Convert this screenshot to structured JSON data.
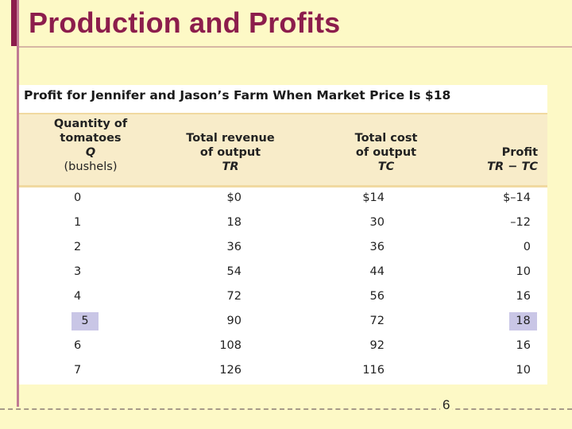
{
  "slide": {
    "title": "Production and Profits",
    "page_number": "6"
  },
  "table": {
    "caption": "Profit for Jennifer and Jason’s Farm When Market Price Is $18",
    "headers": {
      "q": {
        "line1": "Quantity of",
        "line2": "tomatoes",
        "symbol": "Q",
        "unit": "(bushels)"
      },
      "tr": {
        "line1": "Total revenue",
        "line2": "of output",
        "symbol": "TR"
      },
      "tc": {
        "line1": "Total cost",
        "line2": "of output",
        "symbol": "TC"
      },
      "profit": {
        "line1": "Profit",
        "symbol": "TR − TC"
      }
    },
    "rows": [
      {
        "q": "0",
        "tr": "$0",
        "tc": "$14",
        "profit": "$–14"
      },
      {
        "q": "1",
        "tr": "18",
        "tc": "30",
        "profit": "–12"
      },
      {
        "q": "2",
        "tr": "36",
        "tc": "36",
        "profit": "0"
      },
      {
        "q": "3",
        "tr": "54",
        "tc": "44",
        "profit": "10"
      },
      {
        "q": "4",
        "tr": "72",
        "tc": "56",
        "profit": "16"
      },
      {
        "q": "5",
        "tr": "90",
        "tc": "72",
        "profit": "18"
      },
      {
        "q": "6",
        "tr": "108",
        "tc": "92",
        "profit": "16"
      },
      {
        "q": "7",
        "tr": "126",
        "tc": "116",
        "profit": "10"
      }
    ],
    "highlighted_row": 5,
    "highlight_color": "#c9c6e6"
  },
  "colors": {
    "title": "#8c1d4c",
    "background": "#fdf9c6",
    "header_band": "#f8ecc9"
  }
}
